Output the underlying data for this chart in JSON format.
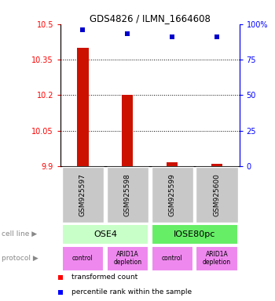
{
  "title": "GDS4826 / ILMN_1664608",
  "samples": [
    "GSM925597",
    "GSM925598",
    "GSM925599",
    "GSM925600"
  ],
  "red_values": [
    10.4,
    10.2,
    9.915,
    9.91
  ],
  "blue_values": [
    96,
    93,
    91,
    91
  ],
  "ylim_left": [
    9.9,
    10.5
  ],
  "ylim_right": [
    0,
    100
  ],
  "yticks_left": [
    9.9,
    10.05,
    10.2,
    10.35,
    10.5
  ],
  "ytick_labels_left": [
    "9.9",
    "10.05",
    "10.2",
    "10.35",
    "10.5"
  ],
  "yticks_right": [
    0,
    25,
    50,
    75,
    100
  ],
  "ytick_labels_right": [
    "0",
    "25",
    "50",
    "75",
    "100%"
  ],
  "cell_line_labels": [
    "OSE4",
    "IOSE80pc"
  ],
  "cell_line_spans": [
    [
      0,
      2
    ],
    [
      2,
      4
    ]
  ],
  "cell_line_colors": [
    "#c8ffc8",
    "#66ee66"
  ],
  "protocol_labels": [
    "control",
    "ARID1A\ndepletion",
    "control",
    "ARID1A\ndepletion"
  ],
  "protocol_color": "#ee88ee",
  "sample_box_color": "#c8c8c8",
  "legend_red_label": "transformed count",
  "legend_blue_label": "percentile rank within the sample",
  "cell_line_row_label": "cell line",
  "protocol_row_label": "protocol",
  "bar_color": "#cc1100",
  "blue_color": "#0000cc"
}
